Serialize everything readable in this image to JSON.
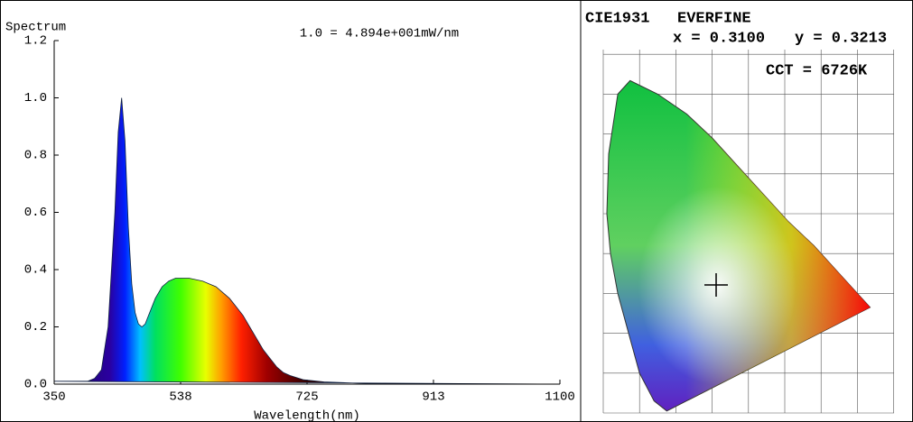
{
  "chart_data": {
    "type": "area",
    "title": "Spectrum",
    "annotation": "1.0 = 4.894e+001mW/nm",
    "x_label": "Wavelength(nm)",
    "x": [
      350,
      380,
      400,
      410,
      420,
      430,
      440,
      445,
      450,
      455,
      460,
      465,
      470,
      475,
      480,
      485,
      490,
      500,
      510,
      520,
      530,
      540,
      550,
      560,
      570,
      580,
      590,
      600,
      610,
      620,
      630,
      640,
      650,
      660,
      670,
      680,
      690,
      700,
      720,
      750,
      800,
      900,
      1000,
      1100
    ],
    "values": [
      0.01,
      0.01,
      0.01,
      0.02,
      0.05,
      0.2,
      0.6,
      0.88,
      1.0,
      0.85,
      0.55,
      0.35,
      0.25,
      0.21,
      0.2,
      0.21,
      0.24,
      0.3,
      0.34,
      0.36,
      0.37,
      0.37,
      0.37,
      0.365,
      0.36,
      0.35,
      0.34,
      0.32,
      0.3,
      0.27,
      0.24,
      0.2,
      0.16,
      0.12,
      0.09,
      0.06,
      0.04,
      0.03,
      0.015,
      0.008,
      0.003,
      0,
      0,
      0
    ],
    "xlim": [
      350,
      1100
    ],
    "xticks": [
      350,
      {
        "value": 537.5,
        "label": "538"
      },
      725,
      {
        "value": 912.5,
        "label": "913"
      },
      1100
    ],
    "ylim": [
      0,
      1.2
    ],
    "yticks": [
      {
        "value": 0,
        "label": "0.0"
      },
      0.2,
      0.4,
      0.6,
      0.8,
      {
        "value": 1,
        "label": "1.0"
      },
      1.2
    ]
  },
  "cie": {
    "title": "CIE1931",
    "brand": "EVERFINE",
    "x_coord": "x = 0.3100",
    "y_coord": "y = 0.3213",
    "cct": "CCT = 6726K"
  }
}
